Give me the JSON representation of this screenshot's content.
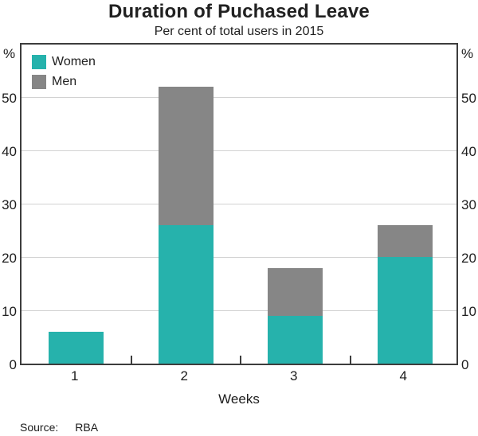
{
  "chart_data": {
    "type": "bar",
    "stacked": true,
    "title": "Duration of Puchased Leave",
    "subtitle": "Per cent of total users in 2015",
    "xlabel": "Weeks",
    "unit_label": "%",
    "categories": [
      "1",
      "2",
      "3",
      "4"
    ],
    "series": [
      {
        "name": "Women",
        "color": "#26b2ac",
        "values": [
          6,
          26,
          9,
          20
        ]
      },
      {
        "name": "Men",
        "color": "#868686",
        "values": [
          0,
          26,
          9,
          6
        ]
      }
    ],
    "totals": [
      6,
      52,
      18,
      26
    ],
    "yticks": [
      0,
      10,
      20,
      30,
      40,
      50
    ],
    "ylim": [
      0,
      60.5
    ],
    "grid": true,
    "legend_position": "top-left",
    "axis_color": "#3d3d3d",
    "gridline_color": "#d2d2d2"
  },
  "source": {
    "label": "Source:",
    "value": "RBA"
  }
}
